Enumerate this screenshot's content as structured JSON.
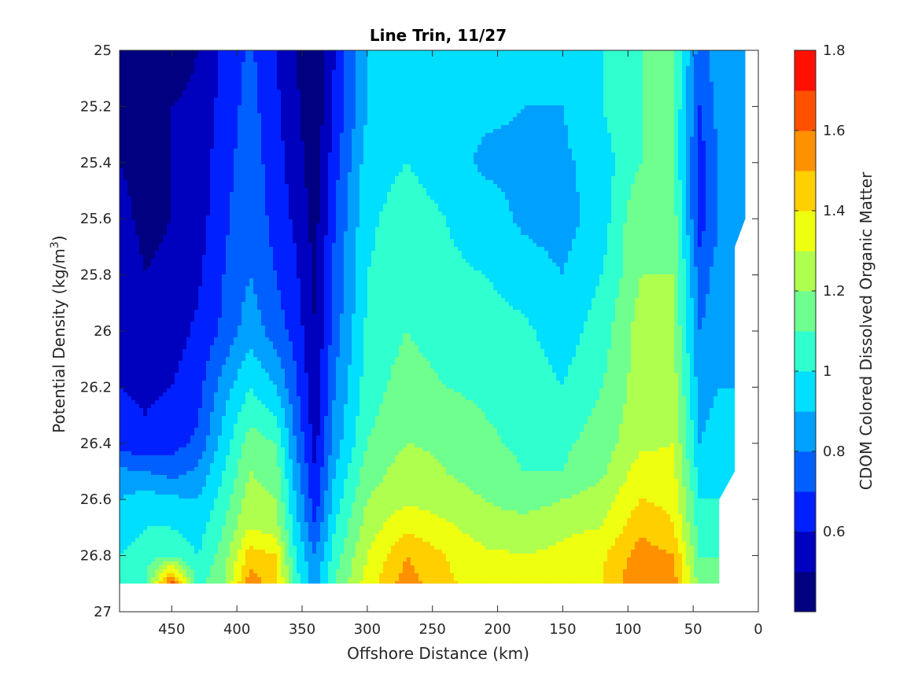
{
  "chart_data": {
    "type": "heatmap",
    "title": "Line Trin, 11/27",
    "xlabel": "Offshore Distance (km)",
    "ylabel": "Potential Density (kg/m³)",
    "ylabel_parts": {
      "main": "Potential Density (kg/m",
      "sup": "3",
      "close": ")"
    },
    "xlim": [
      490,
      0
    ],
    "ylim": [
      25,
      27
    ],
    "x_reversed": true,
    "y_reversed": true,
    "xticks": [
      450,
      400,
      350,
      300,
      250,
      200,
      150,
      100,
      50,
      0
    ],
    "yticks": [
      25,
      25.2,
      25.4,
      25.6,
      25.8,
      26,
      26.2,
      26.4,
      26.6,
      26.8,
      27
    ],
    "xtick_labels": [
      "450",
      "400",
      "350",
      "300",
      "250",
      "200",
      "150",
      "100",
      "50",
      "0"
    ],
    "ytick_labels": [
      "25",
      "25.2",
      "25.4",
      "25.6",
      "25.8",
      "26",
      "26.2",
      "26.4",
      "26.6",
      "26.8",
      "27"
    ],
    "data_extent": {
      "density_bottom": 26.9,
      "offshore_limit_top": 10,
      "offshore_limit_bottom": 30
    },
    "colorbar": {
      "label": "CDOM Colored Dissolved Organic Matter",
      "range": [
        0.4,
        1.8
      ],
      "ticks": [
        0.6,
        0.8,
        1,
        1.2,
        1.4,
        1.6,
        1.8
      ],
      "tick_labels": [
        "0.6",
        "0.8",
        "1",
        "1.2",
        "1.4",
        "1.6",
        "1.8"
      ],
      "levels": [
        0.4,
        0.5,
        0.6,
        0.7,
        0.8,
        0.9,
        1.0,
        1.1,
        1.2,
        1.3,
        1.4,
        1.5,
        1.6,
        1.7,
        1.8
      ],
      "colors": [
        "#000080",
        "#0000BF",
        "#0020FF",
        "#0060FF",
        "#00A0FF",
        "#00DFFF",
        "#30FFCF",
        "#6FFF8F",
        "#AFFF4F",
        "#EFFF10",
        "#FFCF00",
        "#FF9000",
        "#FF5000",
        "#FF1000",
        "#C00000"
      ]
    },
    "x_samples": [
      490,
      470,
      450,
      430,
      410,
      390,
      370,
      355,
      340,
      325,
      300,
      270,
      240,
      210,
      180,
      150,
      120,
      90,
      65,
      45,
      30
    ],
    "y_samples": [
      25.0,
      25.2,
      25.4,
      25.6,
      25.8,
      26.0,
      26.2,
      26.4,
      26.5,
      26.6,
      26.7,
      26.8,
      26.9
    ],
    "values": [
      [
        0.45,
        0.45,
        0.45,
        0.5,
        0.62,
        0.72,
        0.6,
        0.5,
        0.42,
        0.6,
        0.9,
        0.95,
        0.95,
        0.95,
        0.95,
        0.95,
        1.0,
        1.1,
        1.1,
        0.75,
        0.85
      ],
      [
        0.48,
        0.45,
        0.5,
        0.52,
        0.64,
        0.74,
        0.62,
        0.52,
        0.42,
        0.62,
        0.9,
        0.95,
        0.92,
        0.92,
        0.9,
        0.9,
        1.0,
        1.1,
        1.1,
        0.7,
        0.85
      ],
      [
        0.5,
        0.48,
        0.5,
        0.54,
        0.66,
        0.76,
        0.64,
        0.55,
        0.44,
        0.66,
        0.95,
        1.0,
        0.95,
        0.88,
        0.88,
        0.88,
        0.95,
        1.1,
        1.1,
        0.65,
        0.8
      ],
      [
        0.52,
        0.48,
        0.5,
        0.55,
        0.68,
        0.78,
        0.66,
        0.58,
        0.46,
        0.7,
        0.98,
        1.05,
        1.0,
        0.95,
        0.88,
        0.86,
        0.95,
        1.2,
        1.15,
        0.65,
        0.8
      ],
      [
        0.55,
        0.5,
        0.52,
        0.58,
        0.7,
        0.8,
        0.7,
        0.62,
        0.48,
        0.72,
        1.0,
        1.05,
        1.02,
        1.0,
        0.95,
        0.9,
        1.0,
        1.2,
        1.2,
        0.75,
        0.85
      ],
      [
        0.58,
        0.55,
        0.55,
        0.62,
        0.72,
        0.86,
        0.75,
        0.66,
        0.5,
        0.75,
        1.02,
        1.1,
        1.05,
        1.05,
        1.02,
        0.95,
        1.05,
        1.25,
        1.2,
        0.8,
        0.85
      ],
      [
        0.6,
        0.58,
        0.6,
        0.66,
        0.85,
        1.0,
        0.9,
        0.72,
        0.52,
        0.8,
        1.05,
        1.15,
        1.1,
        1.08,
        1.05,
        1.0,
        1.1,
        1.25,
        1.25,
        0.85,
        0.9
      ],
      [
        0.66,
        0.62,
        0.66,
        0.72,
        0.95,
        1.15,
        1.1,
        0.8,
        0.56,
        0.85,
        1.1,
        1.2,
        1.18,
        1.12,
        1.08,
        1.08,
        1.15,
        1.28,
        1.3,
        0.9,
        0.95
      ],
      [
        0.82,
        0.8,
        0.76,
        0.82,
        1.0,
        1.2,
        1.15,
        0.85,
        0.6,
        0.9,
        1.15,
        1.25,
        1.2,
        1.15,
        1.1,
        1.1,
        1.18,
        1.35,
        1.32,
        0.95,
        0.95
      ],
      [
        0.9,
        0.95,
        0.92,
        0.9,
        1.05,
        1.25,
        1.2,
        0.9,
        0.64,
        0.95,
        1.2,
        1.28,
        1.25,
        1.2,
        1.15,
        1.2,
        1.25,
        1.4,
        1.38,
        1.0,
        1.0
      ],
      [
        0.95,
        1.0,
        1.0,
        0.95,
        1.1,
        1.3,
        1.25,
        0.95,
        0.7,
        1.0,
        1.25,
        1.38,
        1.32,
        1.25,
        1.25,
        1.28,
        1.3,
        1.48,
        1.4,
        1.05,
        1.05
      ],
      [
        1.0,
        1.05,
        1.1,
        1.0,
        1.15,
        1.45,
        1.4,
        1.0,
        0.8,
        1.05,
        1.3,
        1.5,
        1.4,
        1.32,
        1.3,
        1.32,
        1.38,
        1.55,
        1.5,
        1.1,
        1.1
      ],
      [
        1.05,
        1.1,
        1.65,
        1.05,
        1.2,
        1.55,
        1.45,
        1.05,
        0.85,
        1.1,
        1.35,
        1.55,
        1.42,
        1.35,
        1.32,
        1.35,
        1.4,
        1.6,
        1.55,
        1.15,
        1.1
      ]
    ]
  }
}
